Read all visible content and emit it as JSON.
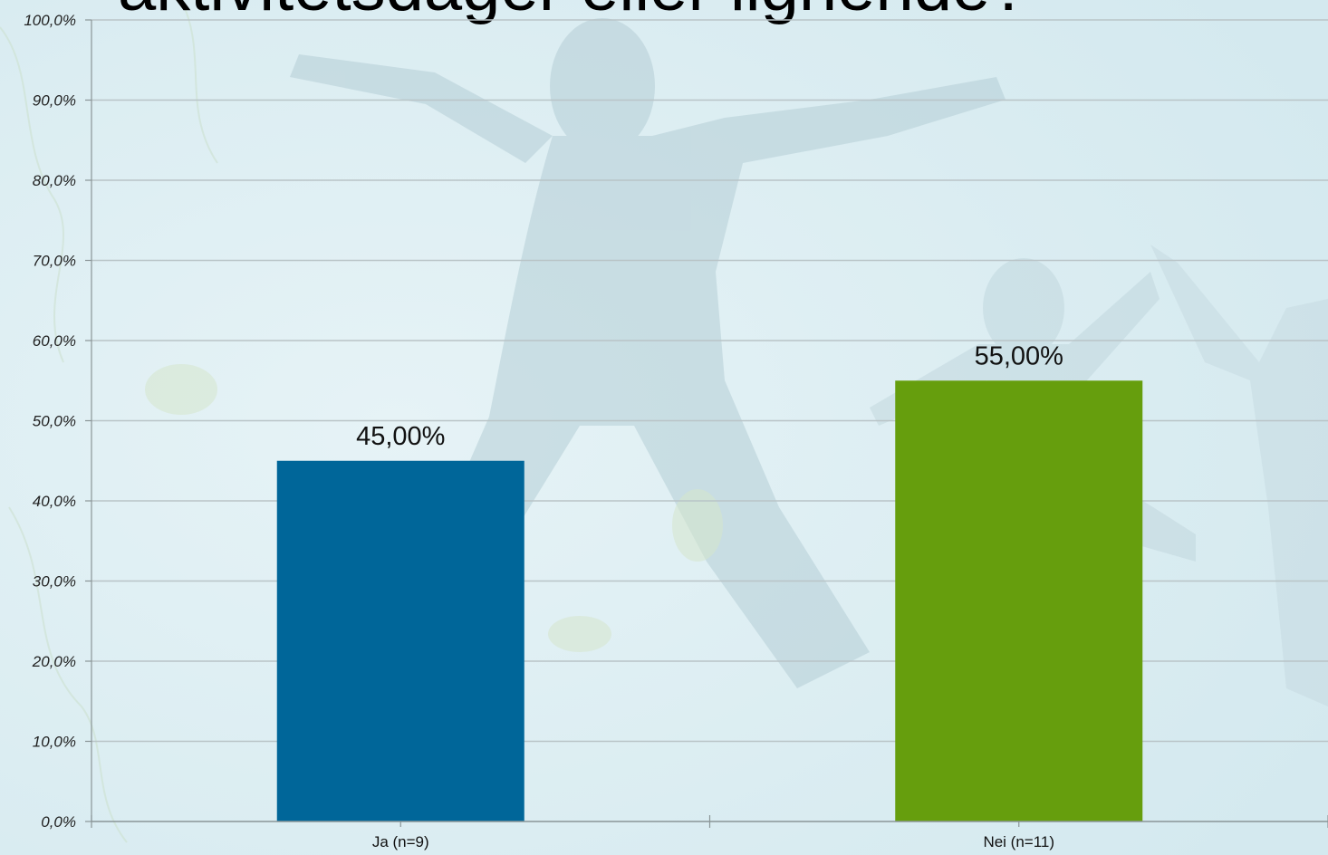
{
  "slide": {
    "title": "aktivitetsdager eller lignende?"
  },
  "colors": {
    "ja_bar": "#006699",
    "nei_bar": "#669e0d",
    "gridline": "#b9c4c7",
    "axis": "#8a9597"
  },
  "chart_data": {
    "type": "bar",
    "categories": [
      "Ja (n=9)",
      "Nei (n=11)"
    ],
    "values": [
      45.0,
      55.0
    ],
    "data_labels": [
      "45,00%",
      "55,00%"
    ],
    "bar_colors": [
      "#006699",
      "#669e0d"
    ],
    "ylim": [
      0,
      100
    ],
    "yticks": [
      0,
      10,
      20,
      30,
      40,
      50,
      60,
      70,
      80,
      90,
      100
    ],
    "ytick_labels": [
      "0,0%",
      "10,0%",
      "20,0%",
      "30,0%",
      "40,0%",
      "50,0%",
      "60,0%",
      "70,0%",
      "80,0%",
      "90,0%",
      "100,0%"
    ],
    "grid": true,
    "legend": "none"
  }
}
